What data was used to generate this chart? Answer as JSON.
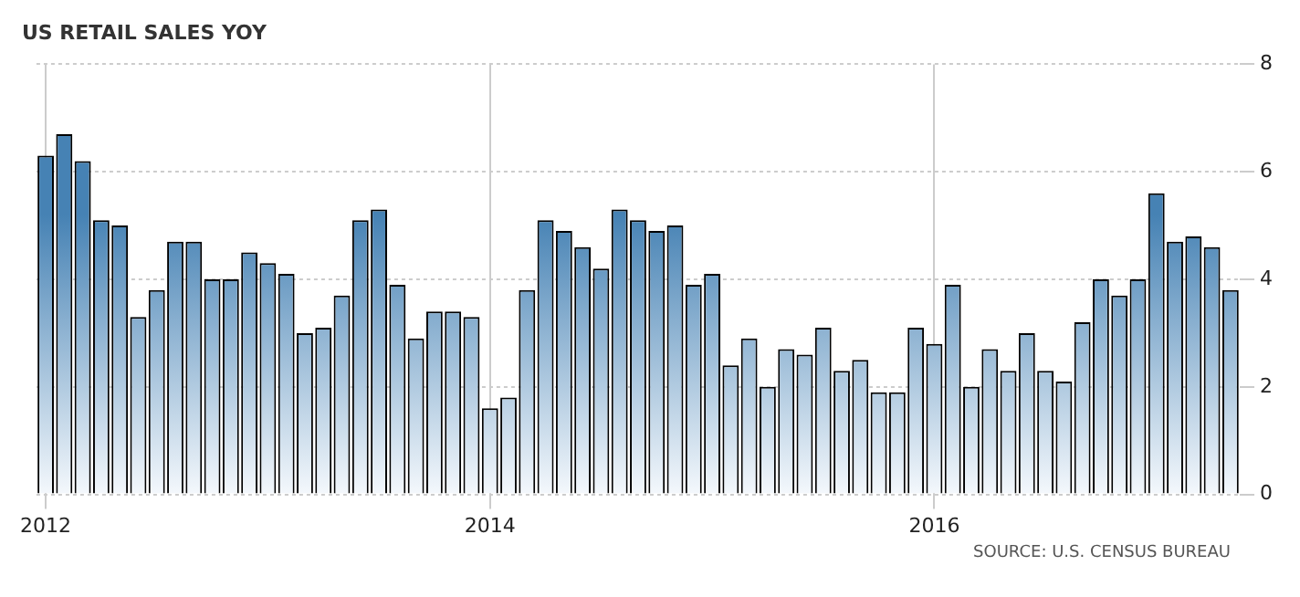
{
  "chart_data": {
    "type": "bar",
    "title": "US RETAIL SALES YOY",
    "categories": [
      "2012",
      null,
      null,
      null,
      null,
      null,
      null,
      null,
      null,
      null,
      null,
      null,
      null,
      null,
      null,
      null,
      null,
      null,
      null,
      null,
      null,
      null,
      null,
      null,
      "2014",
      null,
      null,
      null,
      null,
      null,
      null,
      null,
      null,
      null,
      null,
      null,
      null,
      null,
      null,
      null,
      null,
      null,
      null,
      null,
      null,
      null,
      null,
      null,
      "2016",
      null,
      null,
      null,
      null,
      null,
      null,
      null,
      null,
      null,
      null,
      null,
      null,
      null,
      null,
      null,
      null
    ],
    "values": [
      6.3,
      6.7,
      6.2,
      5.1,
      5.0,
      3.3,
      3.8,
      4.7,
      4.7,
      4.0,
      4.0,
      4.5,
      4.3,
      4.1,
      3.0,
      3.1,
      3.7,
      5.1,
      5.3,
      3.9,
      2.9,
      3.4,
      3.4,
      3.3,
      1.6,
      1.8,
      3.8,
      5.1,
      4.9,
      4.6,
      4.2,
      5.3,
      5.1,
      4.9,
      5.0,
      3.9,
      4.1,
      2.4,
      2.9,
      2.0,
      2.7,
      2.6,
      3.1,
      2.3,
      2.5,
      1.9,
      1.9,
      3.1,
      2.8,
      3.9,
      2.0,
      2.7,
      2.3,
      3.0,
      2.3,
      2.1,
      3.2,
      4.0,
      3.7,
      4.0,
      5.6,
      4.7,
      4.8,
      4.6,
      3.8
    ],
    "color": "#4682b4",
    "ylim": [
      0,
      8
    ],
    "yticks": [
      0,
      2,
      4,
      6,
      8
    ],
    "grid": true,
    "legend": false,
    "annotations": [
      "SOURCE: U.S. CENSUS BUREAU"
    ]
  }
}
